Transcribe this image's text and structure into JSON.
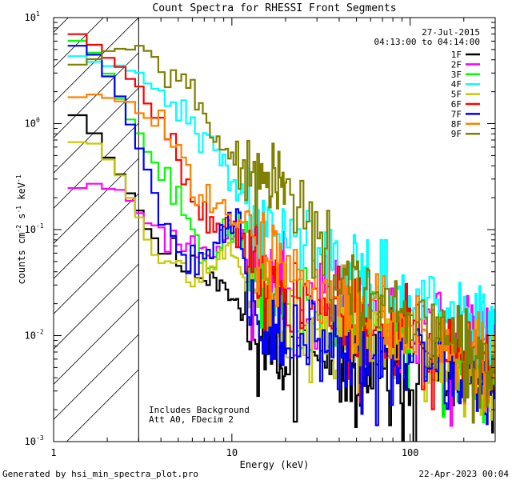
{
  "chart_data": {
    "type": "line",
    "title": "Count Spectra for RHESSI Front Segments",
    "xlabel": "Energy (keV)",
    "ylabel_parts": [
      "counts cm",
      "-2",
      " s",
      "-1",
      " keV",
      "-1"
    ],
    "xscale": "log",
    "yscale": "log",
    "xlim": [
      1,
      300
    ],
    "ylim": [
      0.001,
      10
    ],
    "x_ticks": [
      {
        "value": 1,
        "label": "1"
      },
      {
        "value": 10,
        "label": "10"
      },
      {
        "value": 100,
        "label": "100"
      }
    ],
    "y_ticks": [
      {
        "value": 0.001,
        "base": "10",
        "exp": "-3"
      },
      {
        "value": 0.01,
        "base": "10",
        "exp": "-2"
      },
      {
        "value": 0.1,
        "base": "10",
        "exp": "-1"
      },
      {
        "value": 1,
        "base": "10",
        "exp": "0"
      },
      {
        "value": 10,
        "base": "10",
        "exp": "1"
      }
    ],
    "hatched_region_max_keV": 3,
    "date": "27-Jul-2015",
    "time_range": "04:13:00 to 04:14:00",
    "annotations": [
      "Includes Background",
      "Att A0, FDecim 2"
    ],
    "series": [
      {
        "name": "1F",
        "color": "#000000",
        "seed": 11,
        "knots": [
          [
            1.2,
            1.35
          ],
          [
            1.5,
            1.2
          ],
          [
            1.8,
            0.65
          ],
          [
            2.2,
            0.42
          ],
          [
            2.8,
            0.2
          ],
          [
            3.5,
            0.09
          ],
          [
            4.5,
            0.06
          ],
          [
            6,
            0.04
          ],
          [
            9,
            0.035
          ],
          [
            13,
            0.01
          ],
          [
            20,
            0.007
          ],
          [
            40,
            0.005
          ],
          [
            80,
            0.004
          ],
          [
            150,
            0.0045
          ],
          [
            290,
            0.0035
          ]
        ]
      },
      {
        "name": "2F",
        "color": "#ff00ff",
        "seed": 23,
        "knots": [
          [
            1.2,
            0.25
          ],
          [
            1.8,
            0.26
          ],
          [
            2.5,
            0.23
          ],
          [
            3,
            0.15
          ],
          [
            4,
            0.09
          ],
          [
            6,
            0.07
          ],
          [
            8,
            0.07
          ],
          [
            11,
            0.09
          ],
          [
            13,
            0.05
          ],
          [
            20,
            0.03
          ],
          [
            40,
            0.022
          ],
          [
            100,
            0.015
          ],
          [
            200,
            0.01
          ],
          [
            290,
            0.008
          ]
        ]
      },
      {
        "name": "3F",
        "color": "#00ff00",
        "seed": 37,
        "knots": [
          [
            1.2,
            6.5
          ],
          [
            1.6,
            6.0
          ],
          [
            2.0,
            3.2
          ],
          [
            2.5,
            1.4
          ],
          [
            3,
            0.8
          ],
          [
            3.5,
            0.5
          ],
          [
            4.5,
            0.25
          ],
          [
            6,
            0.12
          ],
          [
            7,
            0.04
          ],
          [
            9,
            0.08
          ],
          [
            11,
            0.12
          ],
          [
            13,
            0.04
          ],
          [
            20,
            0.018
          ],
          [
            50,
            0.012
          ],
          [
            100,
            0.01
          ],
          [
            200,
            0.007
          ],
          [
            290,
            0.005
          ]
        ]
      },
      {
        "name": "4F",
        "color": "#00ffff",
        "seed": 41,
        "knots": [
          [
            1.2,
            4.2
          ],
          [
            2,
            3.8
          ],
          [
            3,
            2.8
          ],
          [
            4.5,
            1.6
          ],
          [
            6,
            0.95
          ],
          [
            8,
            0.55
          ],
          [
            10,
            0.32
          ],
          [
            13,
            0.16
          ],
          [
            20,
            0.1
          ],
          [
            30,
            0.065
          ],
          [
            50,
            0.045
          ],
          [
            80,
            0.028
          ],
          [
            120,
            0.021
          ],
          [
            200,
            0.013
          ],
          [
            290,
            0.01
          ]
        ]
      },
      {
        "name": "5F",
        "color": "#c8c800",
        "seed": 53,
        "knots": [
          [
            1.2,
            0.75
          ],
          [
            1.6,
            0.7
          ],
          [
            2.0,
            0.5
          ],
          [
            2.5,
            0.28
          ],
          [
            3,
            0.14
          ],
          [
            3.5,
            0.07
          ],
          [
            4,
            0.045
          ],
          [
            5,
            0.06
          ],
          [
            6,
            0.04
          ],
          [
            8,
            0.05
          ],
          [
            10,
            0.06
          ],
          [
            13,
            0.03
          ],
          [
            20,
            0.015
          ],
          [
            40,
            0.009
          ],
          [
            80,
            0.008
          ],
          [
            150,
            0.006
          ],
          [
            290,
            0.004
          ]
        ]
      },
      {
        "name": "6F",
        "color": "#ff0000",
        "seed": 67,
        "knots": [
          [
            1.2,
            7.2
          ],
          [
            1.5,
            7.0
          ],
          [
            2.0,
            4.5
          ],
          [
            2.5,
            3.2
          ],
          [
            3,
            2.2
          ],
          [
            3.5,
            1.4
          ],
          [
            4,
            1.0
          ],
          [
            5,
            0.55
          ],
          [
            6,
            0.25
          ],
          [
            7,
            0.16
          ],
          [
            8,
            0.12
          ],
          [
            10,
            0.1
          ],
          [
            13,
            0.05
          ],
          [
            20,
            0.025
          ],
          [
            40,
            0.018
          ],
          [
            100,
            0.012
          ],
          [
            200,
            0.008
          ],
          [
            290,
            0.006
          ]
        ]
      },
      {
        "name": "7F",
        "color": "#0000ff",
        "seed": 79,
        "knots": [
          [
            1.2,
            5.5
          ],
          [
            1.6,
            5.2
          ],
          [
            2.0,
            3.0
          ],
          [
            2.5,
            1.5
          ],
          [
            3,
            0.6
          ],
          [
            3.5,
            0.3
          ],
          [
            4,
            0.15
          ],
          [
            5,
            0.07
          ],
          [
            6,
            0.05
          ],
          [
            7,
            0.06
          ],
          [
            9,
            0.1
          ],
          [
            11,
            0.13
          ],
          [
            12,
            0.03
          ],
          [
            14,
            0.015
          ],
          [
            20,
            0.01
          ],
          [
            40,
            0.008
          ],
          [
            100,
            0.006
          ],
          [
            200,
            0.004
          ],
          [
            290,
            0.003
          ]
        ]
      },
      {
        "name": "8F",
        "color": "#ff8000",
        "seed": 83,
        "knots": [
          [
            1.2,
            1.7
          ],
          [
            1.6,
            1.8
          ],
          [
            2.0,
            1.75
          ],
          [
            2.5,
            1.6
          ],
          [
            3,
            1.3
          ],
          [
            4,
            0.95
          ],
          [
            5,
            0.55
          ],
          [
            6,
            0.33
          ],
          [
            7,
            0.23
          ],
          [
            8,
            0.18
          ],
          [
            10,
            0.12
          ],
          [
            13,
            0.08
          ],
          [
            16,
            0.06
          ],
          [
            25,
            0.04
          ],
          [
            40,
            0.025
          ],
          [
            70,
            0.015
          ],
          [
            150,
            0.009
          ],
          [
            290,
            0.005
          ]
        ]
      },
      {
        "name": "9F",
        "color": "#808000",
        "seed": 97,
        "knots": [
          [
            1.2,
            3.6
          ],
          [
            1.6,
            4.3
          ],
          [
            2.0,
            4.8
          ],
          [
            2.5,
            5.4
          ],
          [
            3,
            5.2
          ],
          [
            4,
            4.3
          ],
          [
            5,
            3.3
          ],
          [
            6,
            1.9
          ],
          [
            7,
            1.2
          ],
          [
            8,
            0.8
          ],
          [
            10,
            0.5
          ],
          [
            12,
            0.32
          ],
          [
            14,
            0.28
          ],
          [
            17,
            0.25
          ],
          [
            22,
            0.2
          ],
          [
            28,
            0.12
          ],
          [
            35,
            0.04
          ],
          [
            60,
            0.02
          ],
          [
            100,
            0.014
          ],
          [
            200,
            0.008
          ],
          [
            290,
            0.005
          ]
        ]
      }
    ]
  },
  "footer": {
    "generated_by": "Generated by hsi_min_spectra_plot.pro",
    "timestamp": "22-Apr-2023 00:04"
  }
}
